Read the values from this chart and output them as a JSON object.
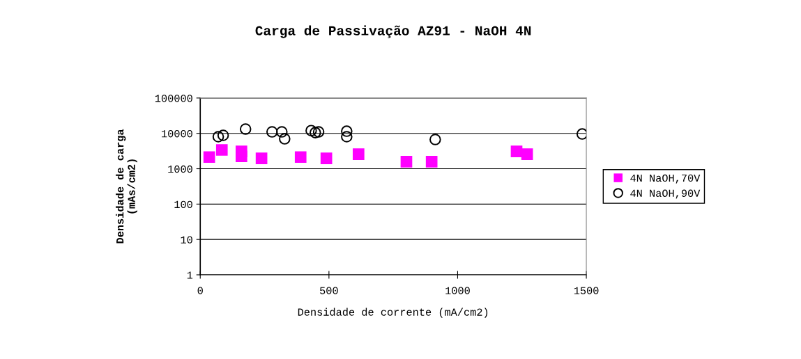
{
  "chart_data": {
    "type": "scatter",
    "title": "Carga de Passivação AZ91 - NaOH 4N",
    "xlabel": "Densidade de corrente (mA/cm2)",
    "ylabel": "Densidade de carga\n(mAs/cm2)",
    "log": "y",
    "xlim": [
      0,
      1500
    ],
    "xticks": [
      0,
      500,
      1000,
      1500
    ],
    "ylim": [
      1,
      100000
    ],
    "yticks": [
      1,
      10,
      100,
      1000,
      10000,
      100000
    ],
    "grid": "y",
    "legend": "right",
    "series": [
      {
        "name": "4N NaOH,70V",
        "color": "#ff00ff",
        "marker": "square",
        "x": [
          35,
          84,
          160,
          160,
          238,
          390,
          490,
          615,
          801,
          899,
          1229,
          1270
        ],
        "values": [
          2140,
          3400,
          3100,
          2240,
          1960,
          2140,
          1960,
          2570,
          1580,
          1580,
          3100,
          2570
        ]
      },
      {
        "name": "4N NaOH,90V",
        "color": "#000000",
        "marker": "circle",
        "x": [
          70,
          89,
          176,
          279,
          317,
          328,
          431,
          447,
          460,
          569,
          569,
          913,
          1484
        ],
        "values": [
          8040,
          8800,
          13200,
          11000,
          11000,
          7000,
          12000,
          10500,
          11000,
          11500,
          8040,
          6700,
          9600
        ]
      }
    ]
  }
}
